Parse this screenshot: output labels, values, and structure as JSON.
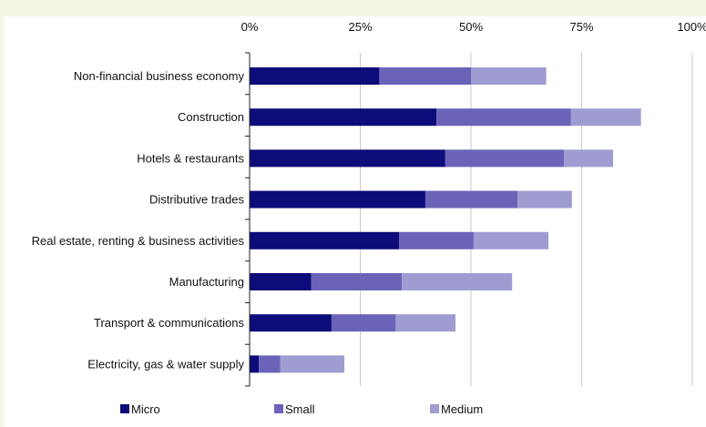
{
  "chart_data": {
    "type": "bar",
    "orientation": "horizontal",
    "stacked": true,
    "title": "",
    "xlabel": "",
    "ylabel": "",
    "xlim": [
      0,
      100
    ],
    "x_ticks": [
      "0%",
      "25%",
      "50%",
      "75%",
      "100%"
    ],
    "x_axis_position": "top",
    "grid": true,
    "legend_placement": "bottom",
    "categories": [
      "Non-financial business economy",
      "Construction",
      "Hotels & restaurants",
      "Distributive trades",
      "Real estate, renting & business activities",
      "Manufacturing",
      "Transport & communications",
      "Electricity, gas & water supply"
    ],
    "series": [
      {
        "name": "Micro",
        "color": "#0c0c7a",
        "values": [
          29.3,
          42.2,
          44.2,
          39.7,
          33.8,
          13.9,
          18.5,
          2.1
        ]
      },
      {
        "name": "Small",
        "color": "#6c63b9",
        "values": [
          20.7,
          30.4,
          26.8,
          20.8,
          16.8,
          20.5,
          14.5,
          4.8
        ]
      },
      {
        "name": "Medium",
        "color": "#9f9cd1",
        "values": [
          17.0,
          15.8,
          11.1,
          12.3,
          16.9,
          24.9,
          13.5,
          14.5
        ]
      }
    ]
  }
}
